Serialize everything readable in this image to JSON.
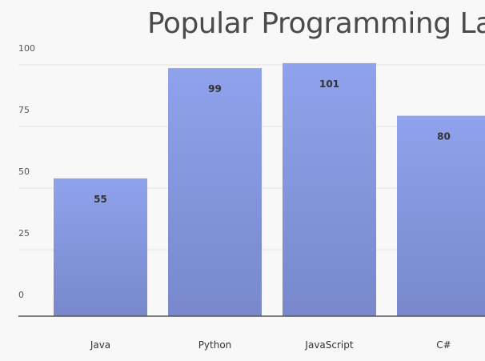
{
  "chart_data": {
    "type": "bar",
    "title": "Popular Programming La",
    "categories": [
      "Java",
      "Python",
      "JavaScript",
      "C#"
    ],
    "values": [
      55,
      99,
      101,
      80
    ],
    "y_ticks": [
      "0",
      "25",
      "50",
      "75",
      "100"
    ],
    "ylim": [
      0,
      100
    ],
    "grid": true,
    "colors": {
      "bar_top": "#8fa2ec",
      "bar_bottom": "#7888cb",
      "grid": "#e2e2e2",
      "axis": "#555555"
    }
  }
}
